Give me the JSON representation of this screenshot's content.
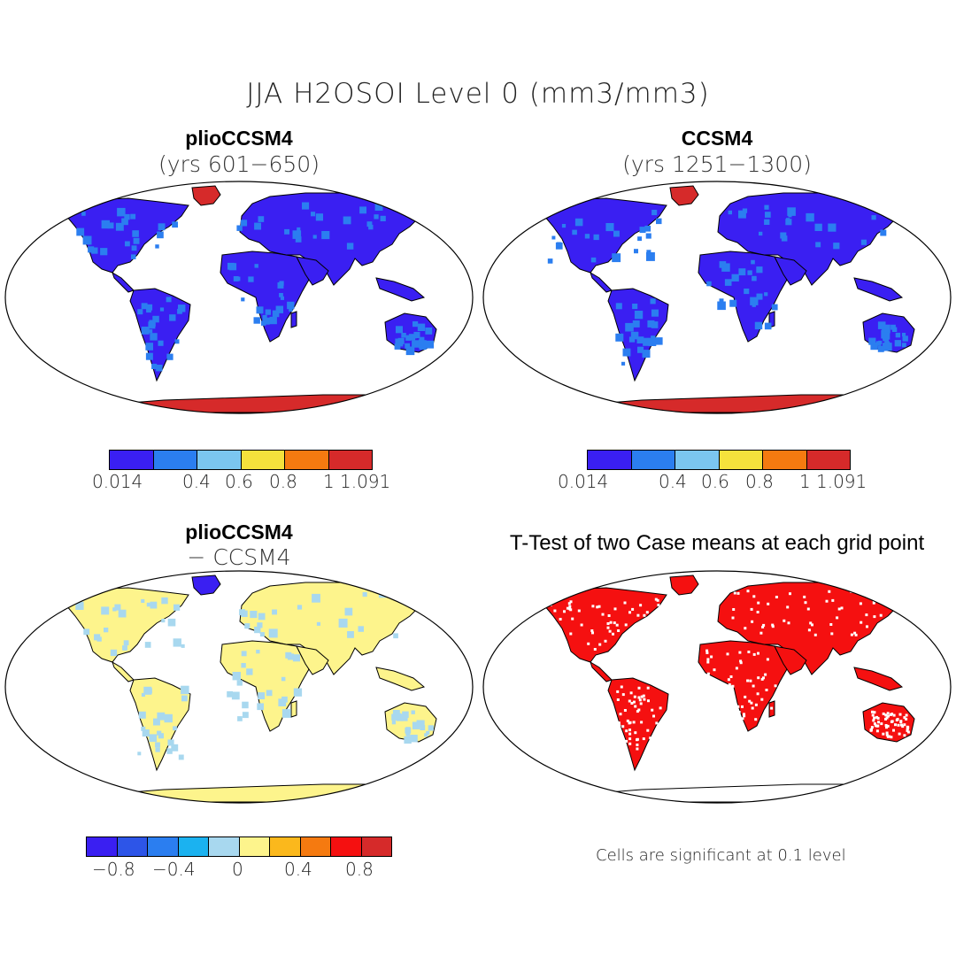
{
  "title": "JJA H2OSOI Level 0 (mm3/mm3)",
  "panels": [
    {
      "id": "tl",
      "title": "plioCCSM4",
      "subtitle": "(yrs 601−650)"
    },
    {
      "id": "tr",
      "title": "CCSM4",
      "subtitle": "(yrs 1251−1300)"
    },
    {
      "id": "bl",
      "title": "plioCCSM4",
      "subtitle": "− CCSM4"
    },
    {
      "id": "br",
      "title": "T-Test of two Case means at each grid point",
      "subtitle": ""
    }
  ],
  "colorbar_abs": {
    "colors": [
      "#3a1ff2",
      "#2b7ef0",
      "#7bc6f0",
      "#f5e23c",
      "#f57a10",
      "#d62a2a"
    ],
    "ticks": [
      "0.014",
      "0.4",
      "0.6",
      "0.8",
      "1",
      "1.091"
    ]
  },
  "colorbar_diff": {
    "colors": [
      "#3a1ff2",
      "#2d55e8",
      "#2b7ef0",
      "#1bb2f0",
      "#a8d8ef",
      "#fdf48c",
      "#fbb81c",
      "#f57a10",
      "#f51010",
      "#d62a2a"
    ],
    "ticks": [
      "−0.8",
      "−0.4",
      "0",
      "0.4",
      "0.8"
    ]
  },
  "footnote": "Cells are significant at 0.1 level",
  "fills": {
    "tl": {
      "land": "#3a1ff2",
      "accent": "#2b7ef0",
      "ice": "#d62a2a",
      "greenland": "#d62a2a"
    },
    "tr": {
      "land": "#3a1ff2",
      "accent": "#2b7ef0",
      "ice": "#d62a2a",
      "greenland": "#d62a2a"
    },
    "bl": {
      "land": "#fdf48c",
      "accent": "#a8d8ef",
      "ice": "#fdf48c",
      "greenland": "#3a1ff2"
    },
    "br": {
      "land": "#f51010",
      "accent": "#ffffff",
      "ice": "#ffffff",
      "greenland": "#f51010"
    }
  }
}
